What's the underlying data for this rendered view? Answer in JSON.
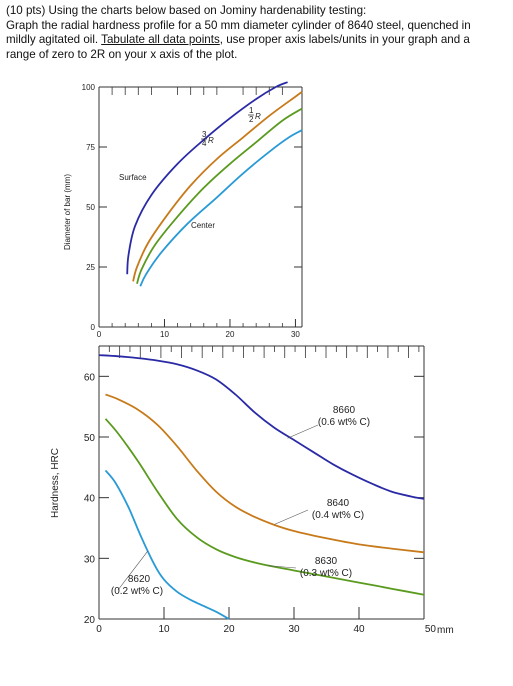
{
  "question": {
    "line1": "(10 pts) Using the charts below based on Jominy hardenability testing:",
    "line2": "Graph the radial hardness profile for a 50 mm diameter cylinder of 8640 steel, quenched in",
    "line3_pre": "mildly agitated oil. ",
    "line3_underlined": "Tabulate all data points",
    "line3_post": ", use proper axis labels/units in your graph and a",
    "line4": "range of zero to 2R on your x axis of the plot."
  },
  "chart_data": [
    {
      "type": "line",
      "xlabel": "",
      "ylabel": "Diameter of bar (mm)",
      "xlim": [
        0,
        31
      ],
      "ylim": [
        0,
        100
      ],
      "x_ticks": [
        "0",
        "10",
        "20",
        "30"
      ],
      "y_ticks": [
        "0",
        "25",
        "50",
        "75",
        "100"
      ],
      "grid": false,
      "labels": {
        "surface": "Surface",
        "center": "Center",
        "three_quarter_frac": "3",
        "three_quarter_den": "4",
        "three_quarter_r": "R",
        "half_frac": "1",
        "half_den": "2",
        "half_r": "R"
      },
      "colors": [
        "#2a2aa6",
        "#c77a1a",
        "#5a9a1e",
        "#2a9ad6"
      ],
      "series": [
        {
          "x": [
            4.3,
            4.5,
            5.5,
            8,
            12,
            16,
            20,
            24,
            27,
            28.8
          ],
          "y": [
            22,
            30,
            42,
            55,
            68,
            78,
            87,
            95,
            100,
            102
          ]
        },
        {
          "x": [
            5.2,
            5.8,
            7.5,
            10.5,
            14,
            18,
            22,
            26,
            30,
            31
          ],
          "y": [
            19,
            25,
            35,
            47,
            59,
            70,
            79,
            88,
            96,
            98
          ]
        },
        {
          "x": [
            5.8,
            6.5,
            8.5,
            12,
            16,
            20,
            24,
            28,
            31
          ],
          "y": [
            18,
            24,
            34,
            46,
            58,
            68,
            77,
            86,
            91
          ]
        },
        {
          "x": [
            6.3,
            7.2,
            9.5,
            13.5,
            18,
            22,
            26,
            29,
            31
          ],
          "y": [
            17,
            22,
            31,
            43,
            54,
            64,
            73,
            79,
            82
          ]
        }
      ]
    },
    {
      "type": "line",
      "xlabel": "",
      "x_unit": "mm",
      "ylabel": "Hardness, HRC",
      "xlim": [
        0,
        50
      ],
      "ylim": [
        20,
        65
      ],
      "x_ticks": [
        "0",
        "10",
        "20",
        "30",
        "40",
        "50"
      ],
      "y_ticks": [
        "20",
        "30",
        "40",
        "50",
        "60"
      ],
      "grid": false,
      "series": [
        {
          "name_line1": "8660",
          "name_line2": "(0.6 wt% C)",
          "color": "#2a2aa6",
          "x": [
            0,
            3,
            6,
            9,
            12,
            15,
            18,
            21,
            24,
            27,
            30,
            33,
            36,
            39,
            42,
            45,
            48,
            50
          ],
          "y": [
            63.5,
            63.3,
            63.0,
            62.6,
            62.0,
            61.0,
            59.5,
            57.0,
            54.0,
            51.5,
            49.5,
            47.5,
            45.5,
            43.8,
            42.3,
            41.0,
            40.2,
            39.8
          ]
        },
        {
          "name_line1": "8640",
          "name_line2": "(0.4 wt% C)",
          "color": "#c77a1a",
          "x": [
            1,
            3,
            6,
            9,
            12,
            15,
            18,
            21,
            24,
            27,
            30,
            35,
            40,
            45,
            50
          ],
          "y": [
            57.0,
            56.2,
            54.5,
            52.0,
            48.5,
            44.5,
            41.0,
            38.5,
            36.8,
            35.5,
            34.5,
            33.3,
            32.3,
            31.6,
            31.0
          ]
        },
        {
          "name_line1": "8630",
          "name_line2": "(0.3 wt% C)",
          "color": "#5a9a1e",
          "x": [
            1,
            3,
            6,
            9,
            12,
            15,
            18,
            21,
            24,
            27,
            30,
            35,
            40,
            45,
            50
          ],
          "y": [
            53.0,
            50.5,
            46.0,
            41.0,
            36.5,
            33.5,
            31.5,
            30.2,
            29.3,
            28.6,
            28.0,
            27.0,
            26.0,
            25.0,
            24.0
          ]
        },
        {
          "name_line1": "8620",
          "name_line2": "(0.2 wt% C)",
          "color": "#2a9ad6",
          "x": [
            1,
            2.5,
            4.5,
            6.5,
            8.5,
            10,
            12,
            14,
            16,
            18,
            20
          ],
          "y": [
            44.5,
            42.5,
            38.5,
            33.5,
            29.0,
            26.5,
            24.5,
            23.2,
            22.2,
            21.2,
            20.0
          ]
        }
      ]
    }
  ]
}
